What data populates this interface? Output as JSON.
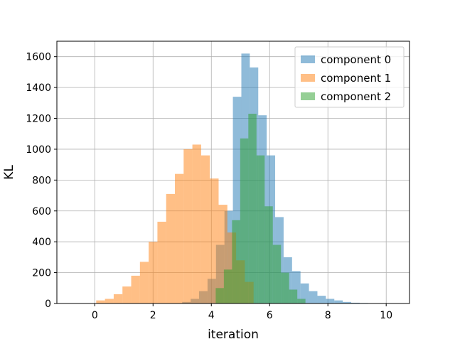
{
  "chart_data": {
    "type": "histogram",
    "title": "",
    "xlabel": "iteration",
    "ylabel": "KL",
    "xlim": [
      -1.3,
      10.8
    ],
    "ylim": [
      0,
      1700
    ],
    "xticks": [
      0,
      2,
      4,
      6,
      8,
      10
    ],
    "yticks": [
      0,
      200,
      400,
      600,
      800,
      1000,
      1200,
      1400,
      1600
    ],
    "grid": true,
    "legend_position": "top-right",
    "series": [
      {
        "name": "component 0",
        "color": "#1f77b4",
        "alpha": 0.5,
        "bin_edges": [
          3.0,
          3.29,
          3.58,
          3.87,
          4.16,
          4.45,
          4.74,
          5.03,
          5.32,
          5.61,
          5.9,
          6.19,
          6.48,
          6.77,
          7.06,
          7.35,
          7.64,
          7.93,
          8.22,
          8.51,
          8.8,
          9.09,
          9.38,
          9.67,
          9.96,
          10.25
        ],
        "counts": [
          10,
          30,
          80,
          160,
          380,
          600,
          1340,
          1620,
          1530,
          1220,
          960,
          560,
          300,
          210,
          130,
          80,
          50,
          30,
          20,
          10,
          5,
          3,
          2,
          1,
          1
        ]
      },
      {
        "name": "component 1",
        "color": "#ff7f0e",
        "alpha": 0.5,
        "bin_edges": [
          0.05,
          0.35,
          0.65,
          0.95,
          1.25,
          1.55,
          1.85,
          2.15,
          2.45,
          2.75,
          3.05,
          3.35,
          3.65,
          3.95,
          4.25,
          4.55,
          4.85,
          5.15,
          5.45
        ],
        "counts": [
          20,
          30,
          60,
          110,
          180,
          270,
          400,
          530,
          710,
          840,
          1000,
          1030,
          960,
          810,
          640,
          460,
          280,
          140
        ]
      },
      {
        "name": "component 2",
        "color": "#2ca02c",
        "alpha": 0.5,
        "bin_edges": [
          4.15,
          4.43,
          4.71,
          4.99,
          5.27,
          5.55,
          5.83,
          6.11,
          6.39,
          6.67,
          6.95,
          7.23
        ],
        "counts": [
          100,
          220,
          540,
          1070,
          1230,
          960,
          630,
          380,
          200,
          90,
          30
        ]
      }
    ]
  }
}
